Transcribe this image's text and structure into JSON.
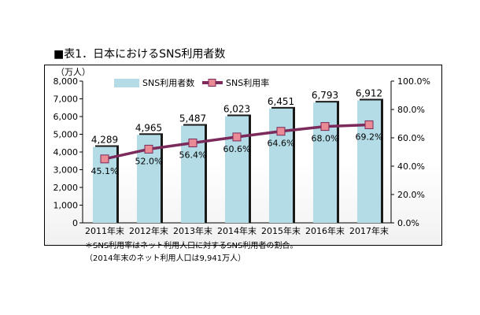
{
  "title": "■表1．日本におけるSNS利用者数",
  "chart_data": {
    "type": "bar",
    "categories": [
      "2011年末",
      "2012年末",
      "2013年末",
      "2014年末",
      "2015年末",
      "2016年末",
      "2017年末"
    ],
    "series": [
      {
        "name": "SNS利用者数",
        "type": "bar",
        "axis": "left",
        "values": [
          4289,
          4965,
          5487,
          6023,
          6451,
          6793,
          6912
        ],
        "labels": [
          "4,289",
          "4,965",
          "5,487",
          "6,023",
          "6,451",
          "6,793",
          "6,912"
        ]
      },
      {
        "name": "SNS利用率",
        "type": "line",
        "axis": "right",
        "values": [
          45.1,
          52.0,
          56.4,
          60.6,
          64.6,
          68.0,
          69.2
        ],
        "labels": [
          "45.1%",
          "52.0%",
          "56.4%",
          "60.6%",
          "64.6%",
          "68.0%",
          "69.2%"
        ]
      }
    ],
    "ylabel": "（万人）",
    "ylim": [
      0,
      8000
    ],
    "yticks": [
      "0",
      "1,000",
      "2,000",
      "3,000",
      "4,000",
      "5,000",
      "6,000",
      "7,000",
      "8,000"
    ],
    "y2lim": [
      0,
      100
    ],
    "y2ticks": [
      "0.0%",
      "20.0%",
      "40.0%",
      "60.0%",
      "80.0%",
      "100.0%"
    ],
    "legend": "top",
    "grid": false,
    "colors": {
      "bar": "#b3dce6",
      "bar_shadow": "#1a1a1a",
      "line": "#7b2a5b",
      "marker": "#e98a95"
    }
  },
  "notes": [
    "＊SNS利用率はネット利用人口に対するSNS利用者の割合。",
    "（2014年末のネット利用人口は9,941万人）"
  ]
}
